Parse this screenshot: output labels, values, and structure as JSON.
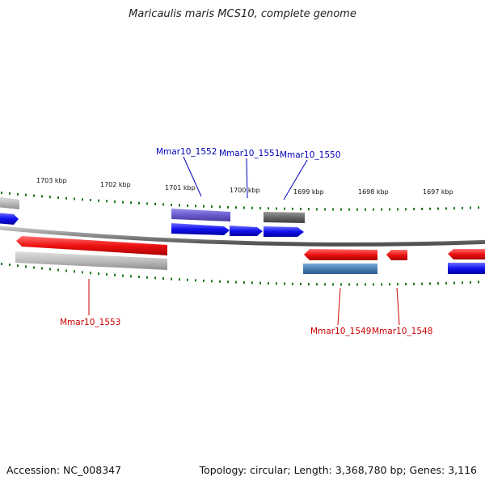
{
  "title": "Maricaulis maris MCS10, complete genome",
  "footer": {
    "accession": "Accession: NC_008347",
    "topology": "Topology: circular; Length: 3,368,780 bp; Genes: 3,116"
  },
  "colors": {
    "tick": "#1a7a1a",
    "backbone": "#8a8a8a",
    "forward_label": "#0000bb",
    "reverse_label": "#cc0000",
    "gene_red": "#ee1111",
    "gene_blue": "#1111ee",
    "gene_gray": "#b8b8b8",
    "gene_darkgray": "#666666",
    "gene_purple": "#6a5acd",
    "gene_steelblue": "#4a7fb5"
  },
  "ruler": {
    "labels": [
      "1703 kbp",
      "1702 kbp",
      "1701 kbp",
      "1700 kbp",
      "1699 kbp",
      "1698 kbp",
      "1697 kbp"
    ]
  },
  "genes": [
    {
      "name": "Mmar10_1552",
      "strand": "+",
      "labeled": true
    },
    {
      "name": "Mmar10_1551",
      "strand": "+",
      "labeled": true
    },
    {
      "name": "Mmar10_1550",
      "strand": "+",
      "labeled": true
    },
    {
      "name": "Mmar10_1553",
      "strand": "-",
      "labeled": true
    },
    {
      "name": "Mmar10_1549",
      "strand": "-",
      "labeled": true
    },
    {
      "name": "Mmar10_1548",
      "strand": "-",
      "labeled": true
    }
  ]
}
